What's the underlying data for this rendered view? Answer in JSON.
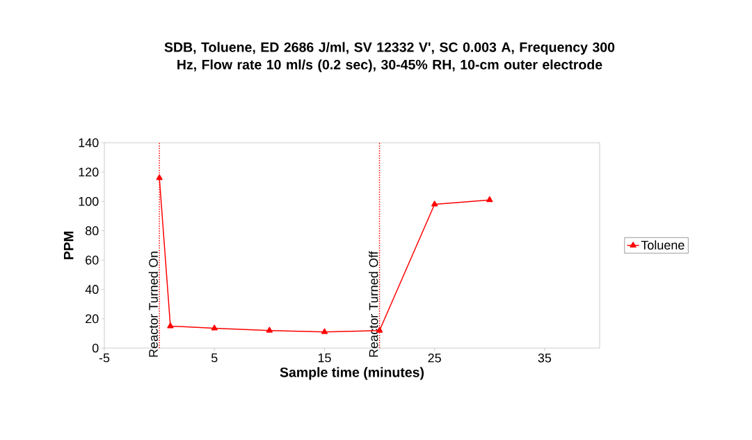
{
  "chart_data": {
    "type": "line",
    "title": "SDB, Toluene, ED 2686 J/ml, SV 12332 V', SC 0.003 A, Frequency 300 Hz, Flow rate 10 ml/s (0.2 sec), 30-45% RH, 10-cm outer electrode",
    "xlabel": "Sample time (minutes)",
    "ylabel": "PPM",
    "x": [
      0,
      1,
      5,
      10,
      15,
      20,
      25,
      30
    ],
    "series": [
      {
        "name": "Toluene",
        "color": "#ff0000",
        "values": [
          116,
          15,
          13.5,
          12,
          11,
          12,
          98,
          101
        ]
      }
    ],
    "xlim": [
      -5,
      40
    ],
    "xticks": [
      -5,
      5,
      15,
      25,
      35
    ],
    "ylim": [
      0,
      140
    ],
    "yticks": [
      0,
      20,
      40,
      60,
      80,
      100,
      120,
      140
    ],
    "ref_lines": [
      {
        "axis": "x",
        "value": 0,
        "label": "Reactor Turned On",
        "color": "#ff0000",
        "line_style": "dotted"
      },
      {
        "axis": "x",
        "value": 20,
        "label": "Reactor Turned Off",
        "color": "#ff0000",
        "line_style": "dotted"
      }
    ],
    "legend": "right",
    "grid": false,
    "marker": "triangle",
    "line_style": "solid"
  }
}
